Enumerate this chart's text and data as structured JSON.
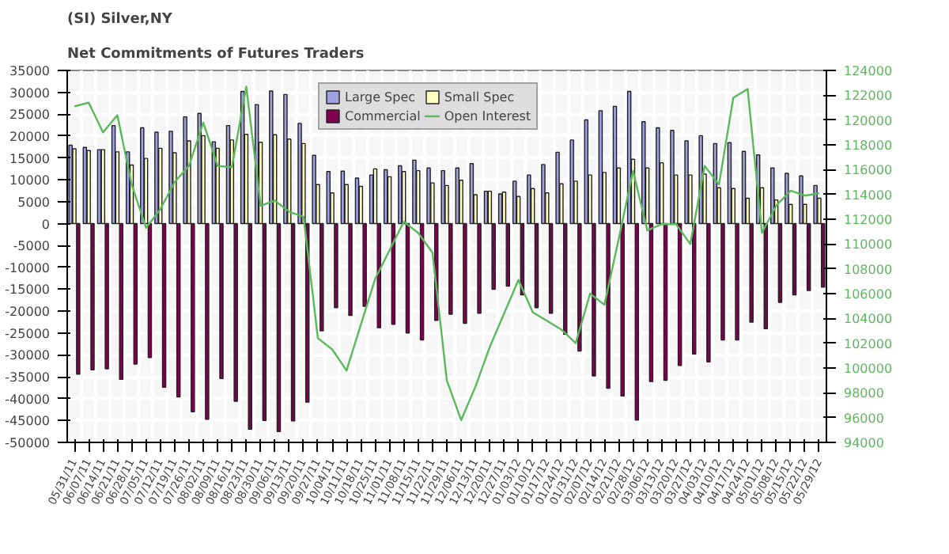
{
  "chart_data": {
    "type": "bar",
    "title": "(SI) Silver,NY",
    "subtitle": "Net Commitments of Futures Traders",
    "categories": [
      "05/31/11",
      "06/07/11",
      "06/14/11",
      "06/21/11",
      "06/28/11",
      "07/05/11",
      "07/12/11",
      "07/19/11",
      "07/26/11",
      "08/02/11",
      "08/09/11",
      "08/16/11",
      "08/23/11",
      "08/30/11",
      "09/06/11",
      "09/13/11",
      "09/20/11",
      "09/27/11",
      "10/04/11",
      "10/11/11",
      "10/18/11",
      "10/25/11",
      "11/01/11",
      "11/08/11",
      "11/15/11",
      "11/22/11",
      "11/29/11",
      "12/06/11",
      "12/13/11",
      "12/20/11",
      "12/27/11",
      "01/03/12",
      "01/10/12",
      "01/17/12",
      "01/24/12",
      "01/31/12",
      "02/07/12",
      "02/14/12",
      "02/21/12",
      "02/28/12",
      "03/06/12",
      "03/13/12",
      "03/20/12",
      "03/27/12",
      "04/03/12",
      "04/10/12",
      "04/17/12",
      "04/24/12",
      "05/01/12",
      "05/08/12",
      "05/15/12",
      "05/22/12",
      "05/29/12"
    ],
    "series": [
      {
        "name": "Large Spec",
        "color": "#a0a0e0",
        "values": [
          17900,
          17400,
          16900,
          22400,
          16400,
          21900,
          20900,
          21100,
          24400,
          25200,
          18700,
          22400,
          30200,
          27200,
          30300,
          29500,
          22900,
          15600,
          11900,
          12000,
          10400,
          11100,
          12300,
          13200,
          14500,
          12700,
          12100,
          12700,
          13700,
          7400,
          6800,
          9700,
          11100,
          13500,
          16300,
          19100,
          23700,
          25800,
          26800,
          30200,
          23300,
          21900,
          21300,
          18900,
          20100,
          18300,
          18500,
          16500,
          15700,
          12700,
          11500,
          10900,
          8700
        ]
      },
      {
        "name": "Small Spec",
        "color": "#ffffc0",
        "values": [
          17100,
          16700,
          16900,
          16400,
          13400,
          14900,
          17200,
          16200,
          18900,
          20100,
          17200,
          19100,
          20400,
          18600,
          20300,
          19300,
          18300,
          8900,
          7000,
          8900,
          8500,
          12500,
          10700,
          11900,
          12100,
          9300,
          8700,
          9900,
          6600,
          7400,
          7200,
          6200,
          8000,
          7000,
          9100,
          9700,
          11100,
          11700,
          12700,
          14700,
          12700,
          13900,
          11100,
          11100,
          11300,
          8200,
          8000,
          5800,
          8200,
          5400,
          4400,
          4400,
          5800
        ]
      },
      {
        "name": "Commercial",
        "color": "#800050",
        "values": [
          -34400,
          -33400,
          -33200,
          -35600,
          -32100,
          -30600,
          -37400,
          -39600,
          -43000,
          -44700,
          -35400,
          -40600,
          -47000,
          -45000,
          -47500,
          -45100,
          -40800,
          -24500,
          -19200,
          -21000,
          -18900,
          -23800,
          -23000,
          -25000,
          -26600,
          -22100,
          -20700,
          -22800,
          -20500,
          -15000,
          -14300,
          -16300,
          -19200,
          -20500,
          -25300,
          -29100,
          -34800,
          -37600,
          -39400,
          -44900,
          -36100,
          -35800,
          -32400,
          -29800,
          -31600,
          -26600,
          -26600,
          -22500,
          -24000,
          -18000,
          -16300,
          -15300,
          -14500
        ]
      },
      {
        "name": "Open Interest",
        "type": "line",
        "axis": "y2",
        "color": "#5cb85c",
        "values": [
          121100,
          121400,
          119000,
          120400,
          114800,
          111300,
          112800,
          115000,
          116300,
          119800,
          116300,
          116200,
          122700,
          113100,
          113500,
          112600,
          112200,
          102400,
          101500,
          99800,
          103500,
          107200,
          109500,
          111800,
          110900,
          109300,
          99000,
          95800,
          98500,
          101700,
          104400,
          107100,
          104500,
          103800,
          103100,
          102000,
          106000,
          105100,
          110400,
          115900,
          111100,
          111600,
          111600,
          110000,
          116300,
          114800,
          121800,
          122500,
          110900,
          113100,
          114300,
          113900,
          114100
        ]
      }
    ],
    "ylim": [
      -50000,
      35000
    ],
    "yticks": [
      -50000,
      -45000,
      -40000,
      -35000,
      -30000,
      -25000,
      -20000,
      -15000,
      -10000,
      -5000,
      0,
      5000,
      10000,
      15000,
      20000,
      25000,
      30000,
      35000
    ],
    "y2lim": [
      94000,
      124000
    ],
    "y2ticks": [
      94000,
      96000,
      98000,
      100000,
      102000,
      104000,
      106000,
      108000,
      110000,
      112000,
      114000,
      116000,
      118000,
      120000,
      122000,
      124000
    ],
    "grid": true,
    "legend": "top",
    "marker": "none",
    "line_style": "solid"
  }
}
